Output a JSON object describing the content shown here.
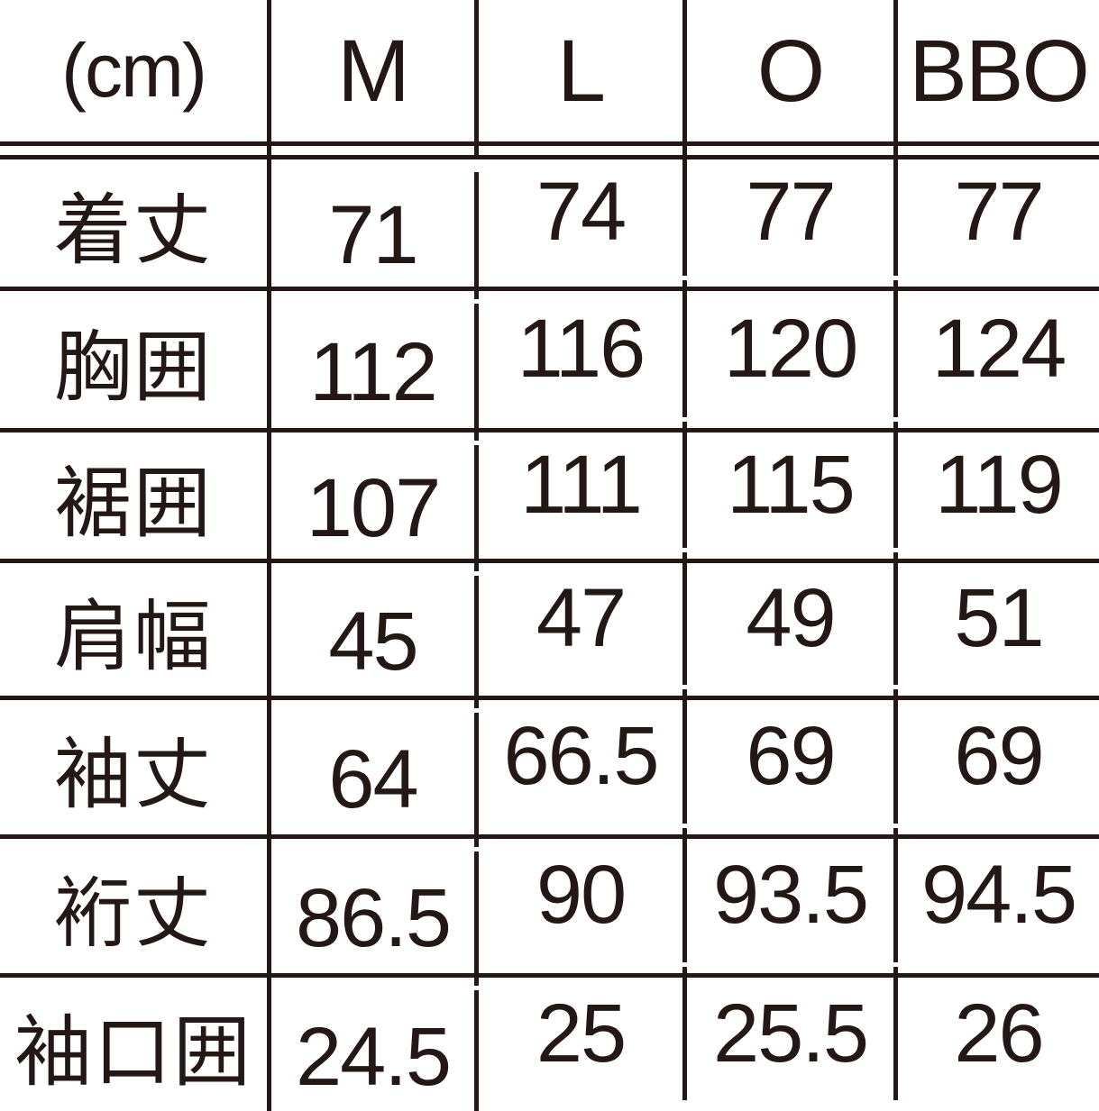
{
  "chart_data": {
    "type": "table",
    "title": "size-spec-chart",
    "unit_label": "(cm)",
    "columns": [
      "M",
      "L",
      "O",
      "BBO"
    ],
    "rows": [
      {
        "label": "着丈",
        "values": [
          "71",
          "74",
          "77",
          "77"
        ]
      },
      {
        "label": "胸囲",
        "values": [
          "112",
          "116",
          "120",
          "124"
        ]
      },
      {
        "label": "裾囲",
        "values": [
          "107",
          "111",
          "115",
          "119"
        ]
      },
      {
        "label": "肩幅",
        "values": [
          "45",
          "47",
          "49",
          "51"
        ]
      },
      {
        "label": "袖丈",
        "values": [
          "64",
          "66.5",
          "69",
          "69"
        ]
      },
      {
        "label": "裄丈",
        "values": [
          "86.5",
          "90",
          "93.5",
          "94.5"
        ]
      },
      {
        "label": "袖口囲",
        "values": [
          "24.5",
          "25",
          "25.5",
          "26"
        ]
      }
    ],
    "layout": {
      "header_separator": "double-line",
      "outer_border": "none (cropped at image edges)"
    },
    "colors": {
      "ink": "#231815",
      "background": "#ffffff"
    }
  }
}
